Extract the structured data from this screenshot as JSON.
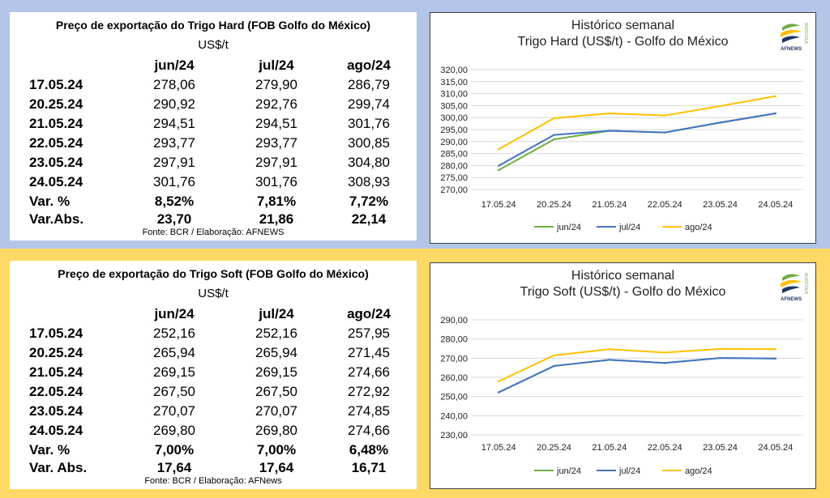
{
  "hard_table": {
    "title": "Preço de exportação do Trigo Hard (FOB Golfo do México)",
    "unit": "US$/t",
    "headers": [
      "jun/24",
      "jul/24",
      "ago/24"
    ],
    "rows": [
      {
        "label": "17.05.24",
        "values": [
          "278,06",
          "279,90",
          "286,79"
        ]
      },
      {
        "label": "20.25.24",
        "values": [
          "290,92",
          "292,76",
          "299,74"
        ]
      },
      {
        "label": "21.05.24",
        "values": [
          "294,51",
          "294,51",
          "301,76"
        ]
      },
      {
        "label": "22.05.24",
        "values": [
          "293,77",
          "293,77",
          "300,85"
        ]
      },
      {
        "label": "23.05.24",
        "values": [
          "297,91",
          "297,91",
          "304,80"
        ]
      },
      {
        "label": "24.05.24",
        "values": [
          "301,76",
          "301,76",
          "308,93"
        ]
      },
      {
        "label": "Var. %",
        "values": [
          "8,52%",
          "7,81%",
          "7,72%"
        ]
      },
      {
        "label": "Var.Abs.",
        "values": [
          "23,70",
          "21,86",
          "22,14"
        ]
      }
    ],
    "source": "Fonte: BCR  / Elaboração: AFNEWS"
  },
  "soft_table": {
    "title": "Preço de exportação do Trigo Soft (FOB Golfo do México)",
    "unit": "US$/t",
    "headers": [
      "jun/24",
      "jul/24",
      "ago/24"
    ],
    "rows": [
      {
        "label": "17.05.24",
        "values": [
          "252,16",
          "252,16",
          "257,95"
        ]
      },
      {
        "label": "20.25.24",
        "values": [
          "265,94",
          "265,94",
          "271,45"
        ]
      },
      {
        "label": "21.05.24",
        "values": [
          "269,15",
          "269,15",
          "274,66"
        ]
      },
      {
        "label": "22.05.24",
        "values": [
          "267,50",
          "267,50",
          "272,92"
        ]
      },
      {
        "label": "23.05.24",
        "values": [
          "270,07",
          "270,07",
          "274,85"
        ]
      },
      {
        "label": "24.05.24",
        "values": [
          "269,80",
          "269,80",
          "274,66"
        ]
      },
      {
        "label": "Var. %",
        "values": [
          "7,00%",
          "7,00%",
          "6,48%"
        ]
      },
      {
        "label": "Var. Abs.",
        "values": [
          "17,64",
          "17,64",
          "16,71"
        ]
      }
    ],
    "source": "Fonte: BCR / Elaboração: AFNews"
  },
  "logo_text": "AFNEWS",
  "logo_side_text": "AGRÍCOLA",
  "chart_data": [
    {
      "type": "line",
      "title": "Histórico semanal",
      "subtitle": "Trigo Hard (US$/t) - Golfo do México",
      "categories": [
        "17.05.24",
        "20.25.24",
        "21.05.24",
        "22.05.24",
        "23.05.24",
        "24.05.24"
      ],
      "series": [
        {
          "name": "jun/24",
          "color": "#70ad47",
          "values": [
            278.06,
            290.92,
            294.51,
            293.77,
            297.91,
            301.76
          ]
        },
        {
          "name": "jul/24",
          "color": "#4472c4",
          "values": [
            279.9,
            292.76,
            294.51,
            293.77,
            297.91,
            301.76
          ]
        },
        {
          "name": "ago/24",
          "color": "#ffc000",
          "values": [
            286.79,
            299.74,
            301.76,
            300.85,
            304.8,
            308.93
          ]
        }
      ],
      "ylim": [
        270,
        320
      ],
      "ystep": 5,
      "ytick_labels": [
        "270,00",
        "275,00",
        "280,00",
        "285,00",
        "290,00",
        "295,00",
        "300,00",
        "305,00",
        "310,00",
        "315,00",
        "320,00"
      ],
      "grid": true,
      "legend": "bottom"
    },
    {
      "type": "line",
      "title": "Histórico semanal",
      "subtitle": "Trigo Soft (US$/t) - Golfo do México",
      "categories": [
        "17.05.24",
        "20.25.24",
        "21.05.24",
        "22.05.24",
        "23.05.24",
        "24.05.24"
      ],
      "series": [
        {
          "name": "jun/24",
          "color": "#70ad47",
          "values": [
            252.16,
            265.94,
            269.15,
            267.5,
            270.07,
            269.8
          ]
        },
        {
          "name": "jul/24",
          "color": "#4472c4",
          "values": [
            252.16,
            265.94,
            269.15,
            267.5,
            270.07,
            269.8
          ]
        },
        {
          "name": "ago/24",
          "color": "#ffc000",
          "values": [
            257.95,
            271.45,
            274.66,
            272.92,
            274.85,
            274.66
          ]
        }
      ],
      "ylim": [
        230,
        290
      ],
      "ystep": 10,
      "ytick_labels": [
        "230,00",
        "240,00",
        "250,00",
        "260,00",
        "270,00",
        "280,00",
        "290,00"
      ],
      "grid": true,
      "legend": "bottom"
    }
  ]
}
